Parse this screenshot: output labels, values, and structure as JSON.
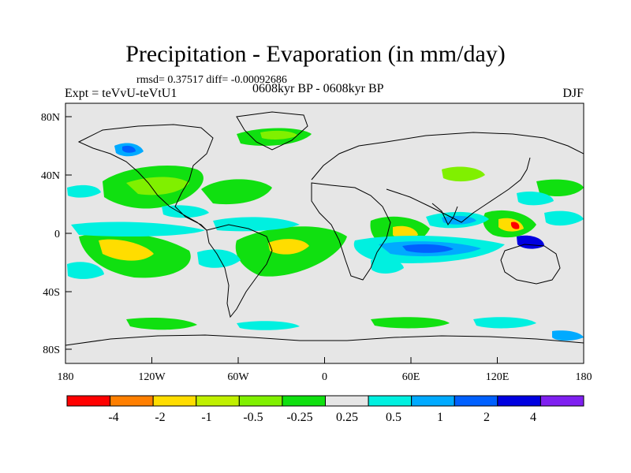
{
  "header": {
    "title": "Precipitation - Evaporation (in mm/day)",
    "stats": "rmsd= 0.37517 diff= -0.00092686",
    "expt": "Expt = teVvU-teVtU1",
    "period": "0608kyr BP - 0608kyr BP",
    "season": "DJF"
  },
  "axes": {
    "x_ticks": [
      "180",
      "120W",
      "60W",
      "0",
      "60E",
      "120E",
      "180"
    ],
    "y_ticks": [
      "80N",
      "40N",
      "0",
      "40S",
      "80S"
    ]
  },
  "colorbar": {
    "colors": [
      "#ff0000",
      "#ff7f00",
      "#ffdd00",
      "#c0f000",
      "#80f000",
      "#10e010",
      "#e6e6e6",
      "#00f0e0",
      "#00aaff",
      "#0060ff",
      "#0000e0",
      "#7f20f0"
    ],
    "labels": [
      "-4",
      "-2",
      "-1",
      "-0.5",
      "-0.25",
      "0.25",
      "0.5",
      "1",
      "2",
      "4"
    ]
  },
  "legend_colors": {
    "strong_negative": "#ff0000",
    "moderate_negative": "#ffdd00",
    "weak_negative": "#10e010",
    "neutral": "#e6e6e6",
    "weak_positive": "#00f0e0",
    "moderate_positive": "#00aaff",
    "strong_positive": "#0000e0"
  }
}
